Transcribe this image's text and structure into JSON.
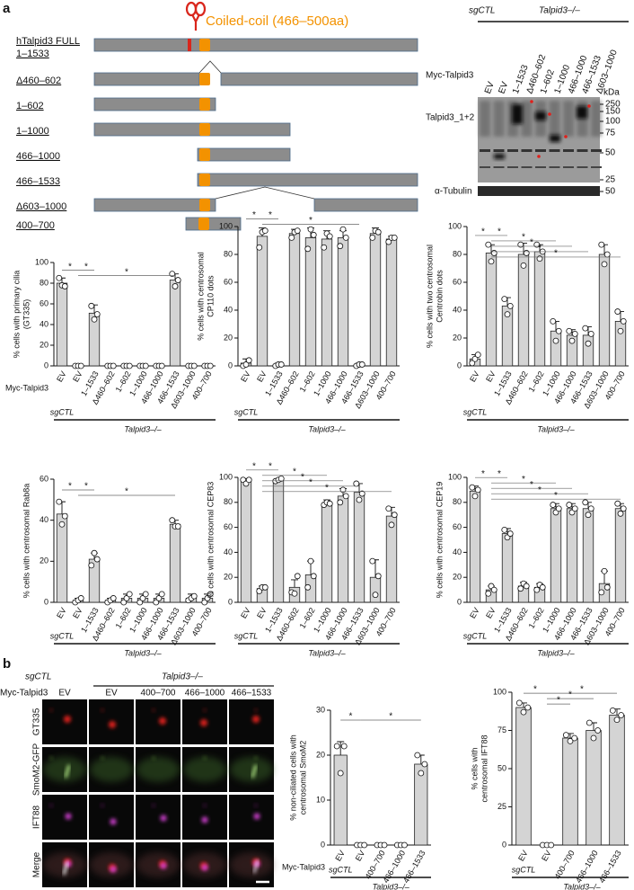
{
  "panel_labels": [
    "a",
    "b"
  ],
  "domain_diagram": {
    "annotation": "Coiled-coil (466–500aa)",
    "constructs": [
      [
        "hTalpid3 FULL",
        "1–1533"
      ],
      [
        "Δ460–602"
      ],
      [
        "1–602"
      ],
      [
        "1–1000"
      ],
      [
        "466–1000"
      ],
      [
        "466–1533"
      ],
      [
        "Δ603–1000"
      ],
      [
        "400–700"
      ]
    ]
  },
  "western_blot": {
    "group_labels": [
      "sgCTL",
      "Talpid3–/–"
    ],
    "row_label": "Myc-Talpid3",
    "lanes": [
      "EV",
      "EV",
      "1–1533",
      "Δ460–602",
      "1–602",
      "1–1000",
      "466–1000",
      "466–1533",
      "Δ603–1000"
    ],
    "unit": "kDa",
    "markers": [
      250,
      150,
      100,
      75,
      50,
      25
    ],
    "blot_label": "Talpid3_1+2",
    "loading_label": "α-Tubulin",
    "loading_marker": 50
  },
  "microscopy": {
    "group_labels": [
      "sgCTL",
      "Talpid3–/–"
    ],
    "row_label": "Myc-Talpid3",
    "columns": [
      "EV",
      "EV",
      "400–700",
      "466–1000",
      "466–1533"
    ],
    "channels": [
      {
        "name": "GT335",
        "color": "#e0201b"
      },
      {
        "name": "SmoM2-GFP",
        "color": "#7ab648"
      },
      {
        "name": "IFT88",
        "color": "#a020a0"
      },
      {
        "name": "Merge",
        "color": "#111111"
      }
    ]
  },
  "chart_data": [
    {
      "type": "bar",
      "ylabel": [
        "% cells with primary cilia",
        "(GT335)"
      ],
      "row_label": "Myc-Talpid3",
      "group_labels": [
        "sgCTL",
        "Talpid3–/–"
      ],
      "categories": [
        "EV",
        "EV",
        "1–1533",
        "Δ460–602",
        "1–602",
        "1–1000",
        "466–1000",
        "466–1533",
        "Δ603–1000",
        "400–700"
      ],
      "values": [
        80,
        0,
        51,
        0,
        0,
        0,
        0,
        83,
        0,
        0
      ],
      "errors": [
        5,
        0,
        8,
        0,
        0,
        0,
        0,
        6,
        0,
        0
      ],
      "points": [
        [
          85,
          78,
          77
        ],
        [
          0,
          0,
          0
        ],
        [
          58,
          45,
          50
        ],
        [
          0,
          0,
          0
        ],
        [
          0,
          0,
          0
        ],
        [
          0,
          0,
          0
        ],
        [
          0,
          0,
          0
        ],
        [
          89,
          77,
          83
        ],
        [
          0,
          0,
          0
        ],
        [
          0,
          0,
          0
        ]
      ],
      "ylim": [
        0,
        100
      ],
      "yticks": [
        0,
        20,
        40,
        60,
        80,
        100
      ],
      "color": "#d4d4d4",
      "significance": [
        {
          "label": "*",
          "span": [
            0,
            1
          ]
        },
        {
          "label": "*",
          "span": [
            1,
            2
          ]
        },
        {
          "label": "*",
          "span": [
            1,
            7
          ]
        }
      ]
    },
    {
      "type": "bar",
      "ylabel": [
        "% cells with centrosomal",
        "CP110 dots"
      ],
      "group_labels": [
        "sgCTL",
        "Talpid3–/–"
      ],
      "categories": [
        "EV",
        "EV",
        "1–1533",
        "Δ460–602",
        "1–602",
        "1–1000",
        "466–1000",
        "466–1533",
        "Δ603–1000",
        "400–700"
      ],
      "values": [
        2,
        93,
        1,
        95,
        92,
        91,
        92,
        1,
        95,
        91
      ],
      "errors": [
        3,
        6,
        1,
        3,
        7,
        6,
        5,
        1,
        4,
        2
      ],
      "points": [
        [
          0,
          1,
          4
        ],
        [
          85,
          96,
          97
        ],
        [
          0,
          1,
          1
        ],
        [
          92,
          96,
          97
        ],
        [
          84,
          98,
          94
        ],
        [
          85,
          95,
          93
        ],
        [
          86,
          98,
          92
        ],
        [
          0,
          1,
          1
        ],
        [
          92,
          97,
          96
        ],
        [
          89,
          92,
          92
        ]
      ],
      "ylim": [
        0,
        100
      ],
      "yticks": [
        0,
        20,
        40,
        60,
        80,
        100
      ],
      "color": "#d4d4d4",
      "significance": [
        {
          "label": "*",
          "span": [
            0,
            1
          ]
        },
        {
          "label": "*",
          "span": [
            1,
            2
          ]
        },
        {
          "label": "*",
          "span": [
            1,
            7
          ]
        }
      ]
    },
    {
      "type": "bar",
      "ylabel": [
        "% cells with two centrosomal",
        "Centrobin dots"
      ],
      "group_labels": [
        "sgCTL",
        "Talpid3–/–"
      ],
      "categories": [
        "EV",
        "EV",
        "1–1533",
        "Δ460–602",
        "1–602",
        "1–1000",
        "466–1000",
        "466–1533",
        "Δ603–1000",
        "400–700"
      ],
      "values": [
        5,
        81,
        43,
        80,
        82,
        25,
        22,
        22,
        80,
        32
      ],
      "errors": [
        3,
        6,
        6,
        8,
        5,
        7,
        4,
        6,
        7,
        7
      ],
      "points": [
        [
          2,
          5,
          8
        ],
        [
          87,
          75,
          81
        ],
        [
          48,
          37,
          43
        ],
        [
          87,
          72,
          81
        ],
        [
          87,
          77,
          82
        ],
        [
          32,
          18,
          25
        ],
        [
          25,
          18,
          23
        ],
        [
          27,
          16,
          23
        ],
        [
          87,
          73,
          80
        ],
        [
          39,
          25,
          32
        ]
      ],
      "ylim": [
        0,
        100
      ],
      "yticks": [
        0,
        20,
        40,
        60,
        80,
        100
      ],
      "color": "#d4d4d4",
      "significance": [
        {
          "label": "*",
          "span": [
            0,
            1
          ]
        },
        {
          "label": "*",
          "span": [
            1,
            2
          ]
        },
        {
          "label": "*",
          "span": [
            1,
            5
          ]
        },
        {
          "label": "*",
          "span": [
            1,
            6
          ]
        },
        {
          "label": "*",
          "span": [
            1,
            7
          ]
        },
        {
          "label": "*",
          "span": [
            1,
            9
          ]
        }
      ]
    },
    {
      "type": "bar",
      "ylabel": [
        "% cells with centrosomal Rab8a"
      ],
      "group_labels": [
        "sgCTL",
        "Talpid3–/–"
      ],
      "categories": [
        "EV",
        "EV",
        "1–1533",
        "Δ460–602",
        "1–602",
        "1–1000",
        "466–1000",
        "466–1533",
        "Δ603–1000",
        "400–700"
      ],
      "values": [
        43,
        1,
        21,
        1,
        2,
        2,
        2,
        38,
        2,
        2
      ],
      "errors": [
        6,
        1,
        3,
        1,
        2,
        2,
        2,
        2,
        2,
        2
      ],
      "points": [
        [
          49,
          38,
          42
        ],
        [
          0,
          1,
          2
        ],
        [
          18,
          24,
          21
        ],
        [
          0,
          1,
          2
        ],
        [
          0,
          2,
          4
        ],
        [
          0,
          2,
          4
        ],
        [
          0,
          2,
          4
        ],
        [
          40,
          37,
          37
        ],
        [
          1,
          2,
          3
        ],
        [
          0,
          2,
          4
        ]
      ],
      "ylim": [
        0,
        60
      ],
      "yticks": [
        0,
        20,
        40,
        60
      ],
      "color": "#d4d4d4",
      "significance": [
        {
          "label": "*",
          "span": [
            0,
            1
          ]
        },
        {
          "label": "*",
          "span": [
            1,
            2
          ]
        },
        {
          "label": "*",
          "span": [
            1,
            7
          ]
        }
      ]
    },
    {
      "type": "bar",
      "ylabel": [
        "% cells with centrosomal CEP83"
      ],
      "group_labels": [
        "sgCTL",
        "Talpid3–/–"
      ],
      "categories": [
        "EV",
        "EV",
        "1–1533",
        "Δ460–602",
        "1–602",
        "1–1000",
        "466–1000",
        "466–1533",
        "Δ603–1000",
        "400–700"
      ],
      "values": [
        97,
        11,
        98,
        12,
        22,
        79,
        85,
        88,
        20,
        69
      ],
      "errors": [
        2,
        2,
        1,
        6,
        11,
        3,
        6,
        7,
        14,
        7
      ],
      "points": [
        [
          98,
          95,
          98
        ],
        [
          9,
          12,
          12
        ],
        [
          97,
          98,
          99
        ],
        [
          8,
          7,
          21
        ],
        [
          12,
          33,
          21
        ],
        [
          78,
          80,
          79
        ],
        [
          80,
          90,
          85
        ],
        [
          95,
          82,
          87
        ],
        [
          33,
          6,
          21
        ],
        [
          75,
          62,
          70
        ]
      ],
      "ylim": [
        0,
        100
      ],
      "yticks": [
        0,
        20,
        40,
        60,
        80,
        100
      ],
      "color": "#d4d4d4",
      "significance": [
        {
          "label": "*",
          "span": [
            0,
            1
          ]
        },
        {
          "label": "*",
          "span": [
            1,
            2
          ]
        },
        {
          "label": "*",
          "span": [
            1,
            5
          ]
        },
        {
          "label": "*",
          "span": [
            1,
            6
          ]
        },
        {
          "label": "*",
          "span": [
            1,
            7
          ]
        },
        {
          "label": "*",
          "span": [
            1,
            9
          ]
        }
      ]
    },
    {
      "type": "bar",
      "ylabel": [
        "% cells with centrosomal CEP19"
      ],
      "group_labels": [
        "sgCTL",
        "Talpid3–/–"
      ],
      "categories": [
        "EV",
        "EV",
        "1–1533",
        "Δ460–602",
        "1–602",
        "1–1000",
        "466–1000",
        "466–1533",
        "Δ603–1000",
        "400–700"
      ],
      "values": [
        89,
        10,
        55,
        13,
        12,
        75,
        75,
        75,
        15,
        75
      ],
      "errors": [
        4,
        3,
        4,
        3,
        3,
        4,
        4,
        5,
        10,
        4
      ],
      "points": [
        [
          92,
          85,
          90
        ],
        [
          7,
          13,
          10
        ],
        [
          58,
          52,
          55
        ],
        [
          11,
          15,
          13
        ],
        [
          10,
          14,
          12
        ],
        [
          78,
          72,
          75
        ],
        [
          78,
          72,
          75
        ],
        [
          80,
          70,
          75
        ],
        [
          8,
          25,
          12
        ],
        [
          79,
          71,
          75
        ]
      ],
      "ylim": [
        0,
        100
      ],
      "yticks": [
        0,
        20,
        40,
        60,
        80,
        100
      ],
      "color": "#d4d4d4",
      "significance": [
        {
          "label": "*",
          "span": [
            0,
            1
          ]
        },
        {
          "label": "*",
          "span": [
            1,
            2
          ]
        },
        {
          "label": "*",
          "span": [
            1,
            5
          ]
        },
        {
          "label": "*",
          "span": [
            1,
            6
          ]
        },
        {
          "label": "*",
          "span": [
            1,
            7
          ]
        },
        {
          "label": "*",
          "span": [
            1,
            9
          ]
        }
      ]
    },
    {
      "type": "bar",
      "ylabel": [
        "% non-ciliated cells with",
        "centrosomal SmoM2"
      ],
      "row_label": "Myc-Talpid3",
      "group_labels": [
        "sgCTL",
        "Talpid3–/–"
      ],
      "categories": [
        "EV",
        "EV",
        "400–700",
        "466–1000",
        "466–1533"
      ],
      "values": [
        20,
        0,
        0,
        0,
        18
      ],
      "errors": [
        3,
        0,
        0,
        0,
        2
      ],
      "points": [
        [
          22,
          16,
          22
        ],
        [
          0,
          0,
          0
        ],
        [
          0,
          0,
          0
        ],
        [
          0,
          0,
          0
        ],
        [
          20,
          16,
          18
        ]
      ],
      "ylim": [
        0,
        30
      ],
      "yticks": [
        0,
        10,
        20,
        30
      ],
      "color": "#d4d4d4",
      "significance": [
        {
          "label": "*",
          "span": [
            0,
            1
          ]
        },
        {
          "label": "*",
          "span": [
            1,
            4
          ]
        }
      ]
    },
    {
      "type": "bar",
      "ylabel": [
        "% cells with",
        "centrosomal IFT88"
      ],
      "group_labels": [
        "sgCTL",
        "Talpid3–/–"
      ],
      "categories": [
        "EV",
        "EV",
        "400–700",
        "466–1000",
        "466–1533"
      ],
      "values": [
        90,
        0,
        70,
        75,
        85
      ],
      "errors": [
        3,
        0,
        3,
        5,
        4
      ],
      "points": [
        [
          93,
          87,
          90
        ],
        [
          0,
          0,
          0
        ],
        [
          72,
          68,
          70
        ],
        [
          80,
          70,
          75
        ],
        [
          88,
          82,
          85
        ]
      ],
      "ylim": [
        0,
        100
      ],
      "yticks": [
        0,
        25,
        50,
        75,
        100
      ],
      "color": "#d4d4d4",
      "significance": [
        {
          "label": "*",
          "span": [
            0,
            1
          ]
        },
        {
          "label": "*",
          "span": [
            1,
            4
          ]
        },
        {
          "label": "*",
          "span": [
            1,
            3
          ]
        },
        {
          "label": "*",
          "span": [
            1,
            2
          ]
        }
      ]
    }
  ]
}
